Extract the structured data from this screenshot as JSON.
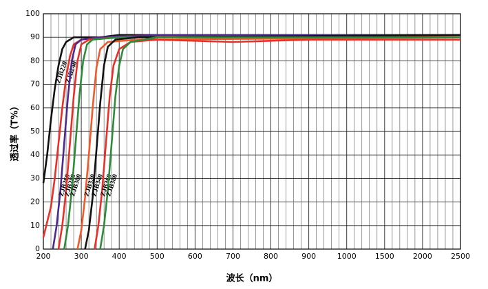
{
  "chart_data": {
    "type": "line",
    "x_label": "波长（nm）",
    "y_label": "透过率（T%）",
    "xticks": [
      200,
      300,
      400,
      500,
      600,
      700,
      800,
      900,
      1000,
      1500,
      2000,
      2500
    ],
    "xlim": [
      200,
      2500
    ],
    "ylim": [
      0,
      100
    ],
    "yticks": [
      0,
      10,
      20,
      30,
      40,
      50,
      60,
      70,
      80,
      90,
      100
    ],
    "grid": true,
    "series": [
      {
        "name": "ZJB220",
        "color": "#111111",
        "x": [
          200,
          210,
          220,
          230,
          240,
          250,
          260,
          270,
          280,
          300,
          350,
          400,
          500,
          1000,
          2500
        ],
        "values": [
          28,
          40,
          55,
          68,
          78,
          85,
          88,
          89,
          90,
          90,
          90,
          91,
          91,
          91,
          91
        ]
      },
      {
        "name": "ZJB240",
        "color": "#e8302a",
        "x": [
          200,
          220,
          230,
          240,
          250,
          260,
          270,
          280,
          300,
          350,
          500,
          2500
        ],
        "values": [
          5,
          18,
          30,
          45,
          60,
          73,
          82,
          87,
          89,
          90,
          91,
          90
        ]
      },
      {
        "name": "ZJB260",
        "color": "#4b2a8c",
        "x": [
          225,
          235,
          245,
          255,
          265,
          275,
          285,
          300,
          350,
          500,
          2500
        ],
        "values": [
          0,
          10,
          25,
          45,
          65,
          80,
          87,
          89,
          90,
          91,
          91
        ]
      },
      {
        "name": "ZJB280",
        "color": "#e8302a",
        "x": [
          240,
          250,
          260,
          270,
          280,
          290,
          300,
          320,
          400,
          2500
        ],
        "values": [
          0,
          10,
          25,
          45,
          65,
          80,
          87,
          89,
          90,
          90
        ]
      },
      {
        "name": "ZJB300",
        "color": "#2e8b3a",
        "x": [
          255,
          265,
          275,
          285,
          295,
          305,
          315,
          330,
          400,
          2500
        ],
        "values": [
          0,
          10,
          25,
          45,
          65,
          80,
          87,
          89,
          90,
          91
        ]
      },
      {
        "name": "ZJB320",
        "color": "#f05a28",
        "x": [
          290,
          300,
          310,
          320,
          330,
          340,
          350,
          370,
          450,
          2500
        ],
        "values": [
          0,
          8,
          22,
          40,
          60,
          77,
          85,
          88,
          89,
          90
        ]
      },
      {
        "name": "ZJB340",
        "color": "#111111",
        "x": [
          310,
          320,
          330,
          340,
          350,
          360,
          370,
          390,
          450,
          2500
        ],
        "values": [
          0,
          8,
          22,
          42,
          62,
          78,
          86,
          89,
          90,
          91
        ]
      },
      {
        "name": "ZJB360",
        "color": "#e8302a",
        "x": [
          335,
          345,
          355,
          365,
          375,
          385,
          400,
          430,
          500,
          700,
          900,
          2500
        ],
        "values": [
          0,
          10,
          25,
          45,
          65,
          78,
          85,
          88,
          89,
          88,
          89,
          89
        ]
      },
      {
        "name": "ZJB380",
        "color": "#2e8b3a",
        "x": [
          350,
          360,
          370,
          380,
          390,
          400,
          410,
          430,
          500,
          2500
        ],
        "values": [
          0,
          10,
          25,
          45,
          65,
          78,
          85,
          88,
          90,
          90
        ]
      }
    ]
  }
}
